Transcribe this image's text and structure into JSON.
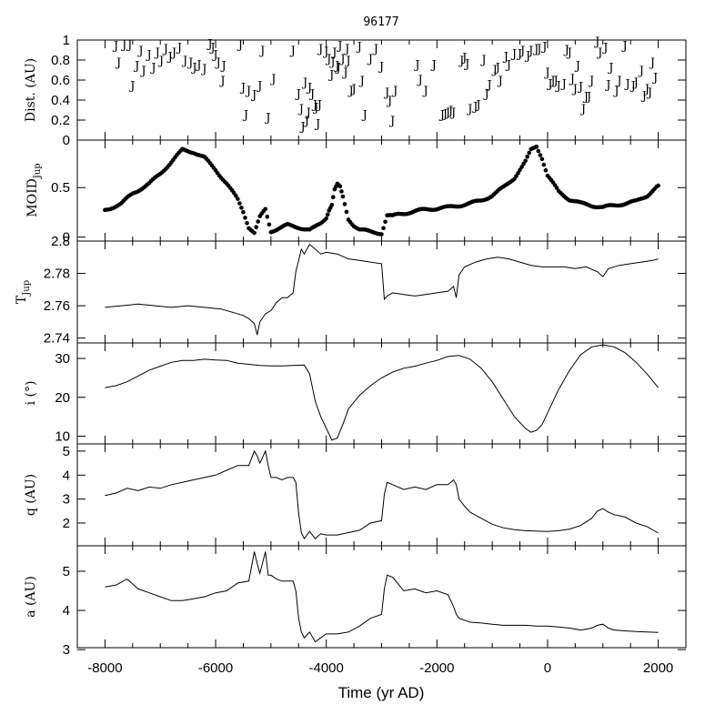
{
  "chart_data": [
    {
      "type": "scatter",
      "panel": "dist",
      "title": "96177",
      "ylabel": "Dist. (AU)",
      "ylim": [
        0,
        1
      ],
      "yticks": [
        0,
        0.2,
        0.4,
        0.6,
        0.8,
        1
      ],
      "yticklabels": [
        "0",
        "0.2",
        "0.4",
        "0.6",
        "0.8",
        "1"
      ],
      "marker": "J",
      "points": [
        [
          -7800,
          0.95
        ],
        [
          -7750,
          0.78
        ],
        [
          -7650,
          0.96
        ],
        [
          -7550,
          0.96
        ],
        [
          -7500,
          0.55
        ],
        [
          -7420,
          0.75
        ],
        [
          -7350,
          0.9
        ],
        [
          -7300,
          0.7
        ],
        [
          -7200,
          0.86
        ],
        [
          -7120,
          0.73
        ],
        [
          -7050,
          0.88
        ],
        [
          -6980,
          0.8
        ],
        [
          -6900,
          0.92
        ],
        [
          -6820,
          0.84
        ],
        [
          -6750,
          0.88
        ],
        [
          -6650,
          0.93
        ],
        [
          -6550,
          0.8
        ],
        [
          -6450,
          0.78
        ],
        [
          -6380,
          0.73
        ],
        [
          -6300,
          0.76
        ],
        [
          -6200,
          0.72
        ],
        [
          -6100,
          0.97
        ],
        [
          -6050,
          0.93
        ],
        [
          -6000,
          0.86
        ],
        [
          -5950,
          0.78
        ],
        [
          -5870,
          0.6
        ],
        [
          -5850,
          0.75
        ],
        [
          -5550,
          0.96
        ],
        [
          -5500,
          0.53
        ],
        [
          -5450,
          0.26
        ],
        [
          -5400,
          0.5
        ],
        [
          -5300,
          0.46
        ],
        [
          -5200,
          0.55
        ],
        [
          -5150,
          0.9
        ],
        [
          -5050,
          0.23
        ],
        [
          -4950,
          0.62
        ],
        [
          -4600,
          0.9
        ],
        [
          -4500,
          0.47
        ],
        [
          -4450,
          0.32
        ],
        [
          -4420,
          0.14
        ],
        [
          -4380,
          0.58
        ],
        [
          -4350,
          0.2
        ],
        [
          -4320,
          0.28
        ],
        [
          -4300,
          0.53
        ],
        [
          -4250,
          0.47
        ],
        [
          -4200,
          0.36
        ],
        [
          -4180,
          0.33
        ],
        [
          -4150,
          0.17
        ],
        [
          -4120,
          0.36
        ],
        [
          -4100,
          0.92
        ],
        [
          -4000,
          0.89
        ],
        [
          -3950,
          0.82
        ],
        [
          -3900,
          0.66
        ],
        [
          -3880,
          0.79
        ],
        [
          -3850,
          0.88
        ],
        [
          -3800,
          0.75
        ],
        [
          -3780,
          0.73
        ],
        [
          -3750,
          0.95
        ],
        [
          -3700,
          0.82
        ],
        [
          -3650,
          0.68
        ],
        [
          -3620,
          0.92
        ],
        [
          -3600,
          0.8
        ],
        [
          -3550,
          0.5
        ],
        [
          -3500,
          0.52
        ],
        [
          -3400,
          0.94
        ],
        [
          -3350,
          0.6
        ],
        [
          -3300,
          0.26
        ],
        [
          -3200,
          0.82
        ],
        [
          -3100,
          0.92
        ],
        [
          -3000,
          0.74
        ],
        [
          -2900,
          0.48
        ],
        [
          -2850,
          0.4
        ],
        [
          -2800,
          0.2
        ],
        [
          -2750,
          0.5
        ],
        [
          -2350,
          0.76
        ],
        [
          -2300,
          0.61
        ],
        [
          -2200,
          0.5
        ],
        [
          -2050,
          0.76
        ],
        [
          -1900,
          0.26
        ],
        [
          -1850,
          0.27
        ],
        [
          -1800,
          0.28
        ],
        [
          -1750,
          0.3
        ],
        [
          -1700,
          0.28
        ],
        [
          -1550,
          0.8
        ],
        [
          -1500,
          0.83
        ],
        [
          -1450,
          0.77
        ],
        [
          -1400,
          0.32
        ],
        [
          -1300,
          0.34
        ],
        [
          -1250,
          0.36
        ],
        [
          -1150,
          0.81
        ],
        [
          -1100,
          0.47
        ],
        [
          -1050,
          0.56
        ],
        [
          -950,
          0.71
        ],
        [
          -900,
          0.73
        ],
        [
          -850,
          0.6
        ],
        [
          -750,
          0.84
        ],
        [
          -700,
          0.76
        ],
        [
          -600,
          0.87
        ],
        [
          -500,
          0.87
        ],
        [
          -450,
          0.9
        ],
        [
          -350,
          0.85
        ],
        [
          -300,
          0.9
        ],
        [
          -200,
          0.92
        ],
        [
          -150,
          0.92
        ],
        [
          -50,
          0.94
        ],
        [
          0,
          0.68
        ],
        [
          50,
          0.57
        ],
        [
          100,
          0.6
        ],
        [
          150,
          0.6
        ],
        [
          200,
          0.55
        ],
        [
          300,
          0.57
        ],
        [
          350,
          0.91
        ],
        [
          400,
          0.88
        ],
        [
          450,
          0.62
        ],
        [
          500,
          0.52
        ],
        [
          550,
          0.75
        ],
        [
          600,
          0.54
        ],
        [
          650,
          0.32
        ],
        [
          700,
          0.44
        ],
        [
          750,
          0.44
        ],
        [
          800,
          0.6
        ],
        [
          900,
          0.99
        ],
        [
          950,
          0.88
        ],
        [
          1050,
          0.93
        ],
        [
          1100,
          0.56
        ],
        [
          1150,
          0.73
        ],
        [
          1250,
          0.5
        ],
        [
          1300,
          0.6
        ],
        [
          1400,
          0.95
        ],
        [
          1450,
          0.57
        ],
        [
          1550,
          0.55
        ],
        [
          1600,
          0.58
        ],
        [
          1700,
          0.7
        ],
        [
          1750,
          0.45
        ],
        [
          1800,
          0.52
        ],
        [
          1850,
          0.48
        ],
        [
          1900,
          0.78
        ],
        [
          1950,
          0.63
        ]
      ]
    },
    {
      "type": "scatter",
      "panel": "moid",
      "ylabel": "MOID",
      "ylabel_sub": "Jup",
      "ylim": [
        -0.04,
        0.98
      ],
      "yticks": [
        0,
        0.5
      ],
      "yticklabels": [
        "0",
        "0.5"
      ],
      "marker": "dot",
      "x": [
        -8000,
        -7700,
        -7500,
        -7200,
        -7000,
        -6800,
        -6600,
        -6400,
        -6200,
        -6000,
        -5800,
        -5600,
        -5500,
        -5400,
        -5300,
        -5200,
        -5100,
        -5000,
        -4900,
        -4700,
        -4500,
        -4300,
        -4200,
        -4100,
        -4000,
        -3950,
        -3900,
        -3850,
        -3800,
        -3750,
        -3700,
        -3600,
        -3500,
        -3400,
        -3200,
        -3000,
        -2900,
        -2800,
        -2700,
        -2500,
        -2200,
        -2000,
        -1800,
        -1600,
        -1400,
        -1200,
        -1000,
        -800,
        -600,
        -400,
        -300,
        -200,
        -100,
        0,
        200,
        400,
        600,
        800,
        1000,
        1200,
        1400,
        1600,
        1800,
        2000
      ],
      "y": [
        0.27,
        0.34,
        0.44,
        0.54,
        0.64,
        0.76,
        0.88,
        0.86,
        0.8,
        0.68,
        0.54,
        0.38,
        0.26,
        0.1,
        0.04,
        0.2,
        0.28,
        0.06,
        0.08,
        0.12,
        0.1,
        0.07,
        0.1,
        0.14,
        0.2,
        0.28,
        0.33,
        0.48,
        0.53,
        0.5,
        0.4,
        0.18,
        0.12,
        0.08,
        0.05,
        0.04,
        0.22,
        0.21,
        0.23,
        0.25,
        0.28,
        0.29,
        0.3,
        0.32,
        0.34,
        0.37,
        0.42,
        0.5,
        0.6,
        0.76,
        0.88,
        0.92,
        0.8,
        0.62,
        0.46,
        0.38,
        0.34,
        0.32,
        0.3,
        0.32,
        0.34,
        0.36,
        0.42,
        0.52
      ]
    },
    {
      "type": "line",
      "panel": "tjup",
      "ylabel": "T",
      "ylabel_sub": "Jup",
      "ylim": [
        2.737,
        2.8
      ],
      "yticks": [
        2.74,
        2.76,
        2.78,
        2.8
      ],
      "yticklabels": [
        "2.74",
        "2.76",
        "2.78",
        "2.8"
      ],
      "x": [
        -8000,
        -7700,
        -7400,
        -7100,
        -6800,
        -6500,
        -6200,
        -5900,
        -5700,
        -5500,
        -5400,
        -5300,
        -5250,
        -5200,
        -5100,
        -5000,
        -4900,
        -4800,
        -4700,
        -4600,
        -4550,
        -4500,
        -4450,
        -4400,
        -4300,
        -4200,
        -4100,
        -4000,
        -3800,
        -3600,
        -3400,
        -3200,
        -3000,
        -2950,
        -2900,
        -2800,
        -2600,
        -2400,
        -2200,
        -2000,
        -1800,
        -1700,
        -1650,
        -1600,
        -1500,
        -1300,
        -1100,
        -900,
        -700,
        -500,
        -300,
        -100,
        100,
        300,
        500,
        700,
        900,
        1000,
        1100,
        1300,
        1500,
        1700,
        1900,
        2000
      ],
      "y": [
        2.759,
        2.76,
        2.761,
        2.76,
        2.759,
        2.76,
        2.759,
        2.758,
        2.756,
        2.754,
        2.752,
        2.749,
        2.742,
        2.75,
        2.755,
        2.757,
        2.762,
        2.765,
        2.765,
        2.768,
        2.781,
        2.788,
        2.795,
        2.792,
        2.798,
        2.795,
        2.792,
        2.793,
        2.792,
        2.789,
        2.788,
        2.787,
        2.786,
        2.764,
        2.766,
        2.768,
        2.767,
        2.766,
        2.767,
        2.768,
        2.769,
        2.772,
        2.765,
        2.779,
        2.784,
        2.787,
        2.789,
        2.79,
        2.789,
        2.787,
        2.785,
        2.784,
        2.784,
        2.784,
        2.783,
        2.784,
        2.781,
        2.778,
        2.783,
        2.785,
        2.786,
        2.787,
        2.788,
        2.789
      ]
    },
    {
      "type": "line",
      "panel": "incl",
      "ylabel": "i (°)",
      "ylim": [
        8,
        34
      ],
      "yticks": [
        10,
        20,
        30
      ],
      "yticklabels": [
        "10",
        "20",
        "30"
      ],
      "x": [
        -8000,
        -7800,
        -7600,
        -7400,
        -7200,
        -7000,
        -6800,
        -6600,
        -6400,
        -6200,
        -6000,
        -5800,
        -5600,
        -5400,
        -5200,
        -5000,
        -4800,
        -4600,
        -4400,
        -4300,
        -4200,
        -4100,
        -4000,
        -3900,
        -3800,
        -3700,
        -3600,
        -3400,
        -3200,
        -3000,
        -2800,
        -2600,
        -2400,
        -2200,
        -2000,
        -1800,
        -1600,
        -1400,
        -1200,
        -1000,
        -800,
        -600,
        -400,
        -300,
        -200,
        -100,
        0,
        200,
        400,
        600,
        800,
        1000,
        1200,
        1400,
        1600,
        1800,
        2000
      ],
      "y": [
        22.5,
        23,
        24,
        25.5,
        27,
        28,
        29,
        29.5,
        29.5,
        29.8,
        29.6,
        29.5,
        28.8,
        28.5,
        28.2,
        28.1,
        28.1,
        28.2,
        28.3,
        26,
        19,
        15,
        12,
        9,
        9.5,
        13,
        17,
        20.5,
        23,
        25,
        26.5,
        27.5,
        28,
        28.8,
        29.5,
        30.5,
        30.8,
        29.8,
        27.5,
        24,
        19.5,
        15,
        12,
        11,
        11.5,
        13,
        16,
        22,
        27,
        31,
        33,
        33.5,
        33,
        31.5,
        29,
        26,
        22.5
      ]
    },
    {
      "type": "line",
      "panel": "q",
      "ylabel": "q (AU)",
      "ylim": [
        1.05,
        5.3
      ],
      "yticks": [
        2,
        3,
        4,
        5
      ],
      "yticklabels": [
        "2",
        "3",
        "4",
        "5"
      ],
      "x": [
        -8000,
        -7800,
        -7600,
        -7400,
        -7200,
        -7000,
        -6800,
        -6600,
        -6400,
        -6200,
        -6000,
        -5800,
        -5600,
        -5400,
        -5300,
        -5250,
        -5200,
        -5100,
        -5050,
        -5000,
        -4900,
        -4800,
        -4700,
        -4600,
        -4550,
        -4500,
        -4450,
        -4400,
        -4300,
        -4200,
        -4100,
        -4000,
        -3800,
        -3600,
        -3400,
        -3200,
        -3000,
        -2950,
        -2900,
        -2800,
        -2600,
        -2400,
        -2200,
        -2000,
        -1800,
        -1700,
        -1650,
        -1600,
        -1500,
        -1400,
        -1200,
        -1000,
        -800,
        -600,
        -400,
        -200,
        0,
        200,
        400,
        600,
        800,
        900,
        1000,
        1100,
        1200,
        1400,
        1600,
        1800,
        2000
      ],
      "y": [
        3.15,
        3.25,
        3.45,
        3.35,
        3.5,
        3.45,
        3.6,
        3.7,
        3.8,
        3.9,
        4.0,
        4.2,
        4.4,
        4.4,
        5.0,
        4.8,
        4.5,
        5.0,
        4.4,
        3.9,
        3.9,
        3.8,
        3.9,
        3.9,
        3.7,
        2.4,
        1.6,
        1.35,
        1.65,
        1.35,
        1.55,
        1.5,
        1.5,
        1.6,
        1.7,
        2.0,
        2.1,
        3.2,
        3.7,
        3.6,
        3.4,
        3.5,
        3.4,
        3.6,
        3.6,
        3.8,
        3.6,
        3.0,
        2.7,
        2.45,
        2.2,
        1.95,
        1.8,
        1.72,
        1.68,
        1.66,
        1.65,
        1.68,
        1.75,
        1.9,
        2.2,
        2.5,
        2.6,
        2.45,
        2.35,
        2.25,
        2.0,
        1.85,
        1.58
      ]
    },
    {
      "type": "line",
      "panel": "a",
      "ylabel": "a (AU)",
      "ylim": [
        3.05,
        5.65
      ],
      "yticks": [
        3,
        4,
        5
      ],
      "yticklabels": [
        "3",
        "4",
        "5"
      ],
      "xlabel": "Time (yr AD)",
      "xlim": [
        -8500,
        2500
      ],
      "xticks": [
        -8000,
        -6000,
        -4000,
        -2000,
        0,
        2000
      ],
      "xticklabels": [
        "-8000",
        "-6000",
        "-4000",
        "-2000",
        "0",
        "2000"
      ],
      "x": [
        -8000,
        -7800,
        -7600,
        -7400,
        -7200,
        -7000,
        -6800,
        -6600,
        -6400,
        -6200,
        -6000,
        -5800,
        -5600,
        -5400,
        -5300,
        -5250,
        -5200,
        -5100,
        -5050,
        -5000,
        -4900,
        -4800,
        -4700,
        -4600,
        -4550,
        -4500,
        -4450,
        -4400,
        -4300,
        -4200,
        -4100,
        -4000,
        -3800,
        -3600,
        -3400,
        -3200,
        -3000,
        -2950,
        -2900,
        -2800,
        -2600,
        -2400,
        -2200,
        -2000,
        -1800,
        -1700,
        -1650,
        -1600,
        -1500,
        -1400,
        -1200,
        -1000,
        -800,
        -600,
        -400,
        -200,
        0,
        200,
        400,
        600,
        800,
        900,
        1000,
        1100,
        1200,
        1400,
        1600,
        1800,
        2000
      ],
      "y": [
        4.6,
        4.65,
        4.8,
        4.55,
        4.45,
        4.35,
        4.25,
        4.25,
        4.3,
        4.35,
        4.45,
        4.5,
        4.7,
        4.75,
        5.5,
        5.2,
        4.95,
        5.5,
        4.9,
        4.9,
        4.8,
        4.75,
        4.75,
        4.75,
        4.5,
        3.8,
        3.45,
        3.3,
        3.45,
        3.2,
        3.3,
        3.4,
        3.4,
        3.45,
        3.6,
        3.8,
        3.9,
        4.55,
        4.9,
        4.85,
        4.5,
        4.55,
        4.45,
        4.5,
        4.4,
        4.1,
        3.9,
        3.8,
        3.75,
        3.7,
        3.68,
        3.65,
        3.62,
        3.62,
        3.62,
        3.6,
        3.6,
        3.58,
        3.55,
        3.5,
        3.55,
        3.62,
        3.65,
        3.55,
        3.5,
        3.48,
        3.46,
        3.45,
        3.44
      ]
    }
  ]
}
